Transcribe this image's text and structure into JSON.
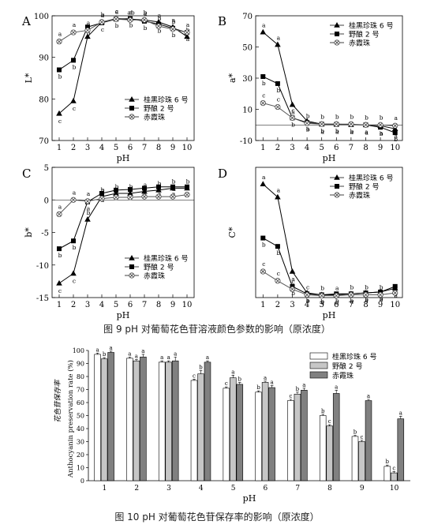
{
  "captions": {
    "fig9": "图  9 pH 对葡萄花色苷溶液颜色参数的影响（原浓度）",
    "fig10": "图  10 pH 对葡萄花色苷保存率的影响（原浓度）"
  },
  "chart_data": [
    {
      "type": "line",
      "panel": "A",
      "xlabel": "pH",
      "ylabel": "L*",
      "x": [
        1,
        2,
        3,
        4,
        5,
        6,
        7,
        8,
        9,
        10
      ],
      "ylim": [
        70,
        100
      ],
      "yticks": [
        70,
        80,
        90,
        100
      ],
      "legend_position": "bottom-right",
      "series": [
        {
          "name": "桂黑珍珠 6 号",
          "marker": "triangle",
          "values": [
            76.5,
            79.5,
            95,
            98.5,
            99.3,
            99.2,
            99,
            98.5,
            97.3,
            95
          ],
          "letters": [
            "c",
            "c",
            "c",
            "a",
            "a",
            "a",
            "a",
            "a",
            "a",
            "b"
          ]
        },
        {
          "name": "野酿 2 号",
          "marker": "square",
          "values": [
            87,
            89.3,
            97.3,
            98.3,
            99.2,
            99.3,
            98.7,
            98,
            97,
            96
          ],
          "letters": [
            "b",
            "b",
            "b",
            "c",
            "b",
            "b",
            "b",
            "b",
            "b",
            "a"
          ]
        },
        {
          "name": "赤霞珠",
          "marker": "xcircle",
          "values": [
            93.8,
            96,
            96.5,
            98.5,
            99.2,
            99,
            99,
            97.5,
            96.8,
            96
          ],
          "letters": [
            "a",
            "a",
            "a",
            "b",
            "c",
            "ab",
            "b",
            "b",
            "b",
            "a"
          ]
        }
      ]
    },
    {
      "type": "line",
      "panel": "B",
      "xlabel": "pH",
      "ylabel": "a*",
      "x": [
        1,
        2,
        3,
        4,
        5,
        6,
        7,
        8,
        9,
        10
      ],
      "ylim": [
        -10,
        70
      ],
      "yticks": [
        -10,
        10,
        30,
        50,
        70
      ],
      "legend_position": "top-right",
      "series": [
        {
          "name": "桂黑珍珠 6 号",
          "marker": "triangle",
          "values": [
            59.5,
            51.5,
            13,
            2.5,
            0.5,
            0.5,
            0.2,
            0,
            -0.5,
            -2.5
          ],
          "letters": [
            "a",
            "a",
            "a",
            "a",
            "a",
            "a",
            "a",
            "a",
            "a",
            "a"
          ]
        },
        {
          "name": "野酿 2 号",
          "marker": "square",
          "values": [
            31,
            26.5,
            4.5,
            1.5,
            0.5,
            0.3,
            0.2,
            0,
            -1.5,
            -5
          ],
          "letters": [
            "b",
            "b",
            "b",
            "b",
            "b",
            "b",
            "b",
            "a",
            "b",
            "b"
          ]
        },
        {
          "name": "赤霞珠",
          "marker": "xcircle",
          "values": [
            14,
            11.5,
            4.5,
            1,
            0.5,
            0.5,
            0.5,
            0,
            0,
            -0.5
          ],
          "letters": [
            "c",
            "c",
            "c",
            "b",
            "b",
            "b",
            "b",
            "b",
            "b",
            "a"
          ]
        }
      ]
    },
    {
      "type": "line",
      "panel": "C",
      "xlabel": "pH",
      "ylabel": "b*",
      "x": [
        1,
        2,
        3,
        4,
        5,
        6,
        7,
        8,
        9,
        10
      ],
      "ylim": [
        -15,
        5
      ],
      "yticks": [
        -15,
        -10,
        -5,
        0,
        5
      ],
      "legend_position": "bottom-right",
      "series": [
        {
          "name": "桂黑珍珠 6 号",
          "marker": "triangle",
          "values": [
            -12.8,
            -11.3,
            -3,
            0.5,
            1,
            1,
            1.3,
            1.5,
            1.8,
            1.8
          ],
          "letters": [
            "c",
            "c",
            "b",
            "b",
            "b",
            "b",
            "a",
            "b",
            "b",
            "b"
          ]
        },
        {
          "name": "野酿 2 号",
          "marker": "square",
          "values": [
            -7.5,
            -6.3,
            -0.3,
            1,
            1.5,
            1.6,
            1.8,
            2,
            2,
            2
          ],
          "letters": [
            "b",
            "b",
            "a",
            "a",
            "a",
            "a",
            "a",
            "a",
            "a",
            "a"
          ]
        },
        {
          "name": "赤霞珠",
          "marker": "xcircle",
          "values": [
            -2.2,
            0,
            -0.2,
            0.2,
            0.4,
            0.4,
            0.5,
            0.5,
            0.5,
            0.8
          ],
          "letters": [
            "a",
            "a",
            "a",
            "b",
            "b",
            "b",
            "b",
            "c",
            "a",
            "a"
          ]
        }
      ]
    },
    {
      "type": "line",
      "panel": "D",
      "xlabel": "pH",
      "ylabel": "C*",
      "x": [
        1,
        2,
        3,
        4,
        5,
        6,
        7,
        8,
        9,
        10
      ],
      "ylim": [
        0,
        70
      ],
      "yticks": [],
      "legend_position": "top-right",
      "series": [
        {
          "name": "桂黑珍珠 6 号",
          "marker": "triangle",
          "values": [
            61,
            54,
            14,
            2.5,
            1.5,
            1.5,
            2,
            2.5,
            3,
            5
          ],
          "letters": [
            "a",
            "a",
            "a",
            "a",
            "a",
            "a",
            "a",
            "a",
            "a",
            "a"
          ]
        },
        {
          "name": "野酿 2 号",
          "marker": "square",
          "values": [
            32,
            27.5,
            6,
            2,
            1.5,
            2,
            2,
            2.5,
            3,
            6
          ],
          "letters": [
            "b",
            "b",
            "b",
            "b",
            "b",
            "b",
            "b",
            "b",
            "b",
            "b"
          ]
        },
        {
          "name": "赤霞珠",
          "marker": "xcircle",
          "values": [
            14,
            9,
            4.5,
            1.5,
            1,
            1,
            1.5,
            1.5,
            1.5,
            2.5
          ],
          "letters": [
            "c",
            "c",
            "c",
            "c",
            "b",
            "a",
            "b",
            "b",
            "b",
            "a"
          ]
        }
      ]
    },
    {
      "type": "bar",
      "panel": "fig10",
      "xlabel": "pH",
      "ylabel": "Anthocyanin preservation rate (%)",
      "ylabel_cn": "花色苷保存率",
      "categories": [
        "1",
        "2",
        "3",
        "4",
        "5",
        "6",
        "7",
        "8",
        "9",
        "10"
      ],
      "ylim": [
        0,
        100
      ],
      "yticks": [
        0,
        10,
        20,
        30,
        40,
        50,
        60,
        70,
        80,
        90,
        100
      ],
      "legend_position": "top-right",
      "series": [
        {
          "name": "桂黑珍珠 6 号",
          "fill": "#ffffff",
          "values": [
            97,
            94,
            91,
            77,
            71,
            68,
            61.5,
            50,
            34,
            11
          ],
          "errors": [
            1,
            1,
            1,
            1,
            1,
            1,
            1,
            1,
            1,
            1
          ],
          "letters": [
            "a",
            "a",
            "a",
            "c",
            "c",
            "b",
            "c",
            "b",
            "b",
            "b"
          ]
        },
        {
          "name": "野酿 2 号",
          "fill": "#c6c6c6",
          "values": [
            93.5,
            92,
            91,
            82,
            79,
            75.5,
            66.5,
            42,
            30,
            6
          ],
          "errors": [
            1,
            1,
            1,
            2.5,
            2,
            1,
            1.5,
            1,
            1,
            1
          ],
          "letters": [
            "b",
            "a",
            "a",
            "b",
            "a",
            "a",
            "b",
            "c",
            "c",
            "c"
          ]
        },
        {
          "name": "赤霞珠",
          "fill": "#808080",
          "values": [
            98.5,
            95,
            92,
            91,
            74,
            71.5,
            69.5,
            67,
            61.5,
            47.5
          ],
          "errors": [
            1,
            2,
            3,
            1,
            1.5,
            1.5,
            1.5,
            2.5,
            1,
            2
          ],
          "letters": [
            "a",
            "a",
            "a",
            "a",
            "b",
            "a",
            "a",
            "a",
            "a",
            "a"
          ]
        }
      ]
    }
  ]
}
